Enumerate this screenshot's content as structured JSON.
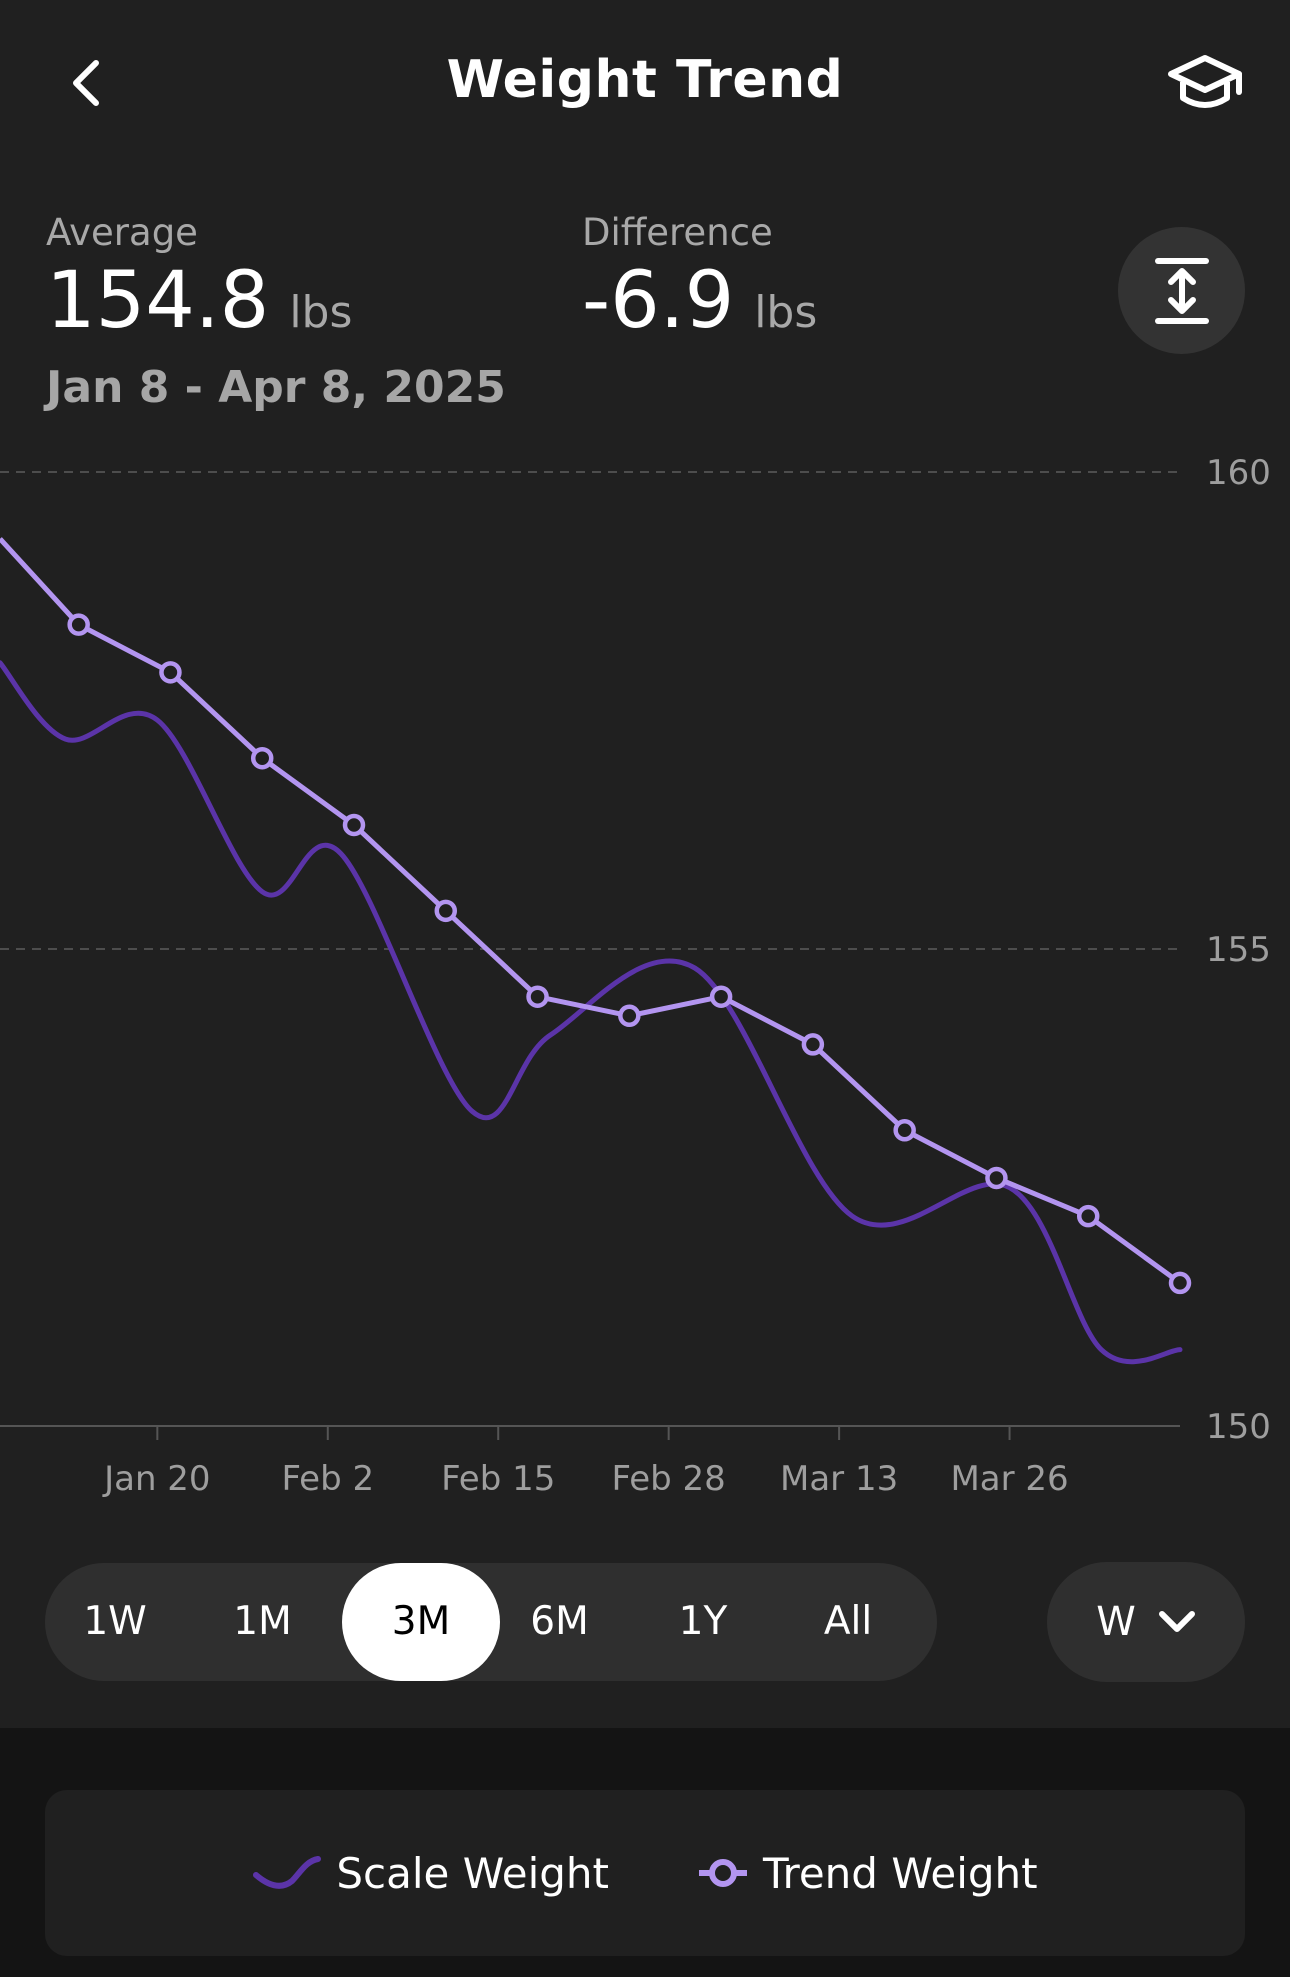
{
  "header": {
    "title": "Weight Trend",
    "back_icon": "chevron-left-icon",
    "learn_icon": "graduation-cap-icon"
  },
  "stats": {
    "average": {
      "label": "Average",
      "value": "154.8",
      "unit": "lbs"
    },
    "difference": {
      "label": "Difference",
      "value": "-6.9",
      "unit": "lbs"
    },
    "date_range": "Jan 8 - Apr 8, 2025",
    "expand_icon": "expand-vertical-icon"
  },
  "time_ranges": [
    {
      "label": "1W",
      "active": false
    },
    {
      "label": "1M",
      "active": false
    },
    {
      "label": "3M",
      "active": true
    },
    {
      "label": "6M",
      "active": false
    },
    {
      "label": "1Y",
      "active": false
    },
    {
      "label": "All",
      "active": false
    }
  ],
  "interval": {
    "label": "W",
    "icon": "chevron-down-icon"
  },
  "legend": [
    {
      "label": "Scale Weight",
      "color": "#5b34a8"
    },
    {
      "label": "Trend Weight",
      "color": "#b395f0"
    }
  ],
  "chart_data": {
    "type": "line",
    "x_type": "date",
    "xlim": [
      "2025-01-08",
      "2025-04-08"
    ],
    "ylim": [
      150,
      160
    ],
    "yticks": [
      150,
      155,
      160
    ],
    "x_ticks": [
      {
        "label": "Jan 20",
        "date": "2025-01-20"
      },
      {
        "label": "Feb 2",
        "date": "2025-02-02"
      },
      {
        "label": "Feb 15",
        "date": "2025-02-15"
      },
      {
        "label": "Feb 28",
        "date": "2025-02-28"
      },
      {
        "label": "Mar 13",
        "date": "2025-03-13"
      },
      {
        "label": "Mar 26",
        "date": "2025-03-26"
      }
    ],
    "grid": true,
    "series": [
      {
        "name": "Trend Weight",
        "color": "#b395f0",
        "markers": true,
        "points": [
          {
            "x": "2025-01-08",
            "y": 159.3
          },
          {
            "x": "2025-01-14",
            "y": 158.4
          },
          {
            "x": "2025-01-21",
            "y": 157.9
          },
          {
            "x": "2025-01-28",
            "y": 157.0
          },
          {
            "x": "2025-02-04",
            "y": 156.3
          },
          {
            "x": "2025-02-11",
            "y": 155.4
          },
          {
            "x": "2025-02-18",
            "y": 154.5
          },
          {
            "x": "2025-02-25",
            "y": 154.3
          },
          {
            "x": "2025-03-04",
            "y": 154.5
          },
          {
            "x": "2025-03-11",
            "y": 154.0
          },
          {
            "x": "2025-03-18",
            "y": 153.1
          },
          {
            "x": "2025-03-25",
            "y": 152.6
          },
          {
            "x": "2025-04-01",
            "y": 152.2
          },
          {
            "x": "2025-04-08",
            "y": 151.5
          }
        ]
      },
      {
        "name": "Scale Weight",
        "color": "#5b34a8",
        "markers": false,
        "points": [
          {
            "x": "2025-01-08",
            "y": 158.0
          },
          {
            "x": "2025-01-13",
            "y": 157.2
          },
          {
            "x": "2025-01-20",
            "y": 157.4
          },
          {
            "x": "2025-01-28",
            "y": 155.6
          },
          {
            "x": "2025-02-03",
            "y": 156.0
          },
          {
            "x": "2025-02-13",
            "y": 153.3
          },
          {
            "x": "2025-02-19",
            "y": 154.1
          },
          {
            "x": "2025-03-02",
            "y": 154.8
          },
          {
            "x": "2025-03-14",
            "y": 152.2
          },
          {
            "x": "2025-03-26",
            "y": 152.5
          },
          {
            "x": "2025-04-02",
            "y": 150.8
          },
          {
            "x": "2025-04-08",
            "y": 150.8
          }
        ]
      }
    ]
  }
}
